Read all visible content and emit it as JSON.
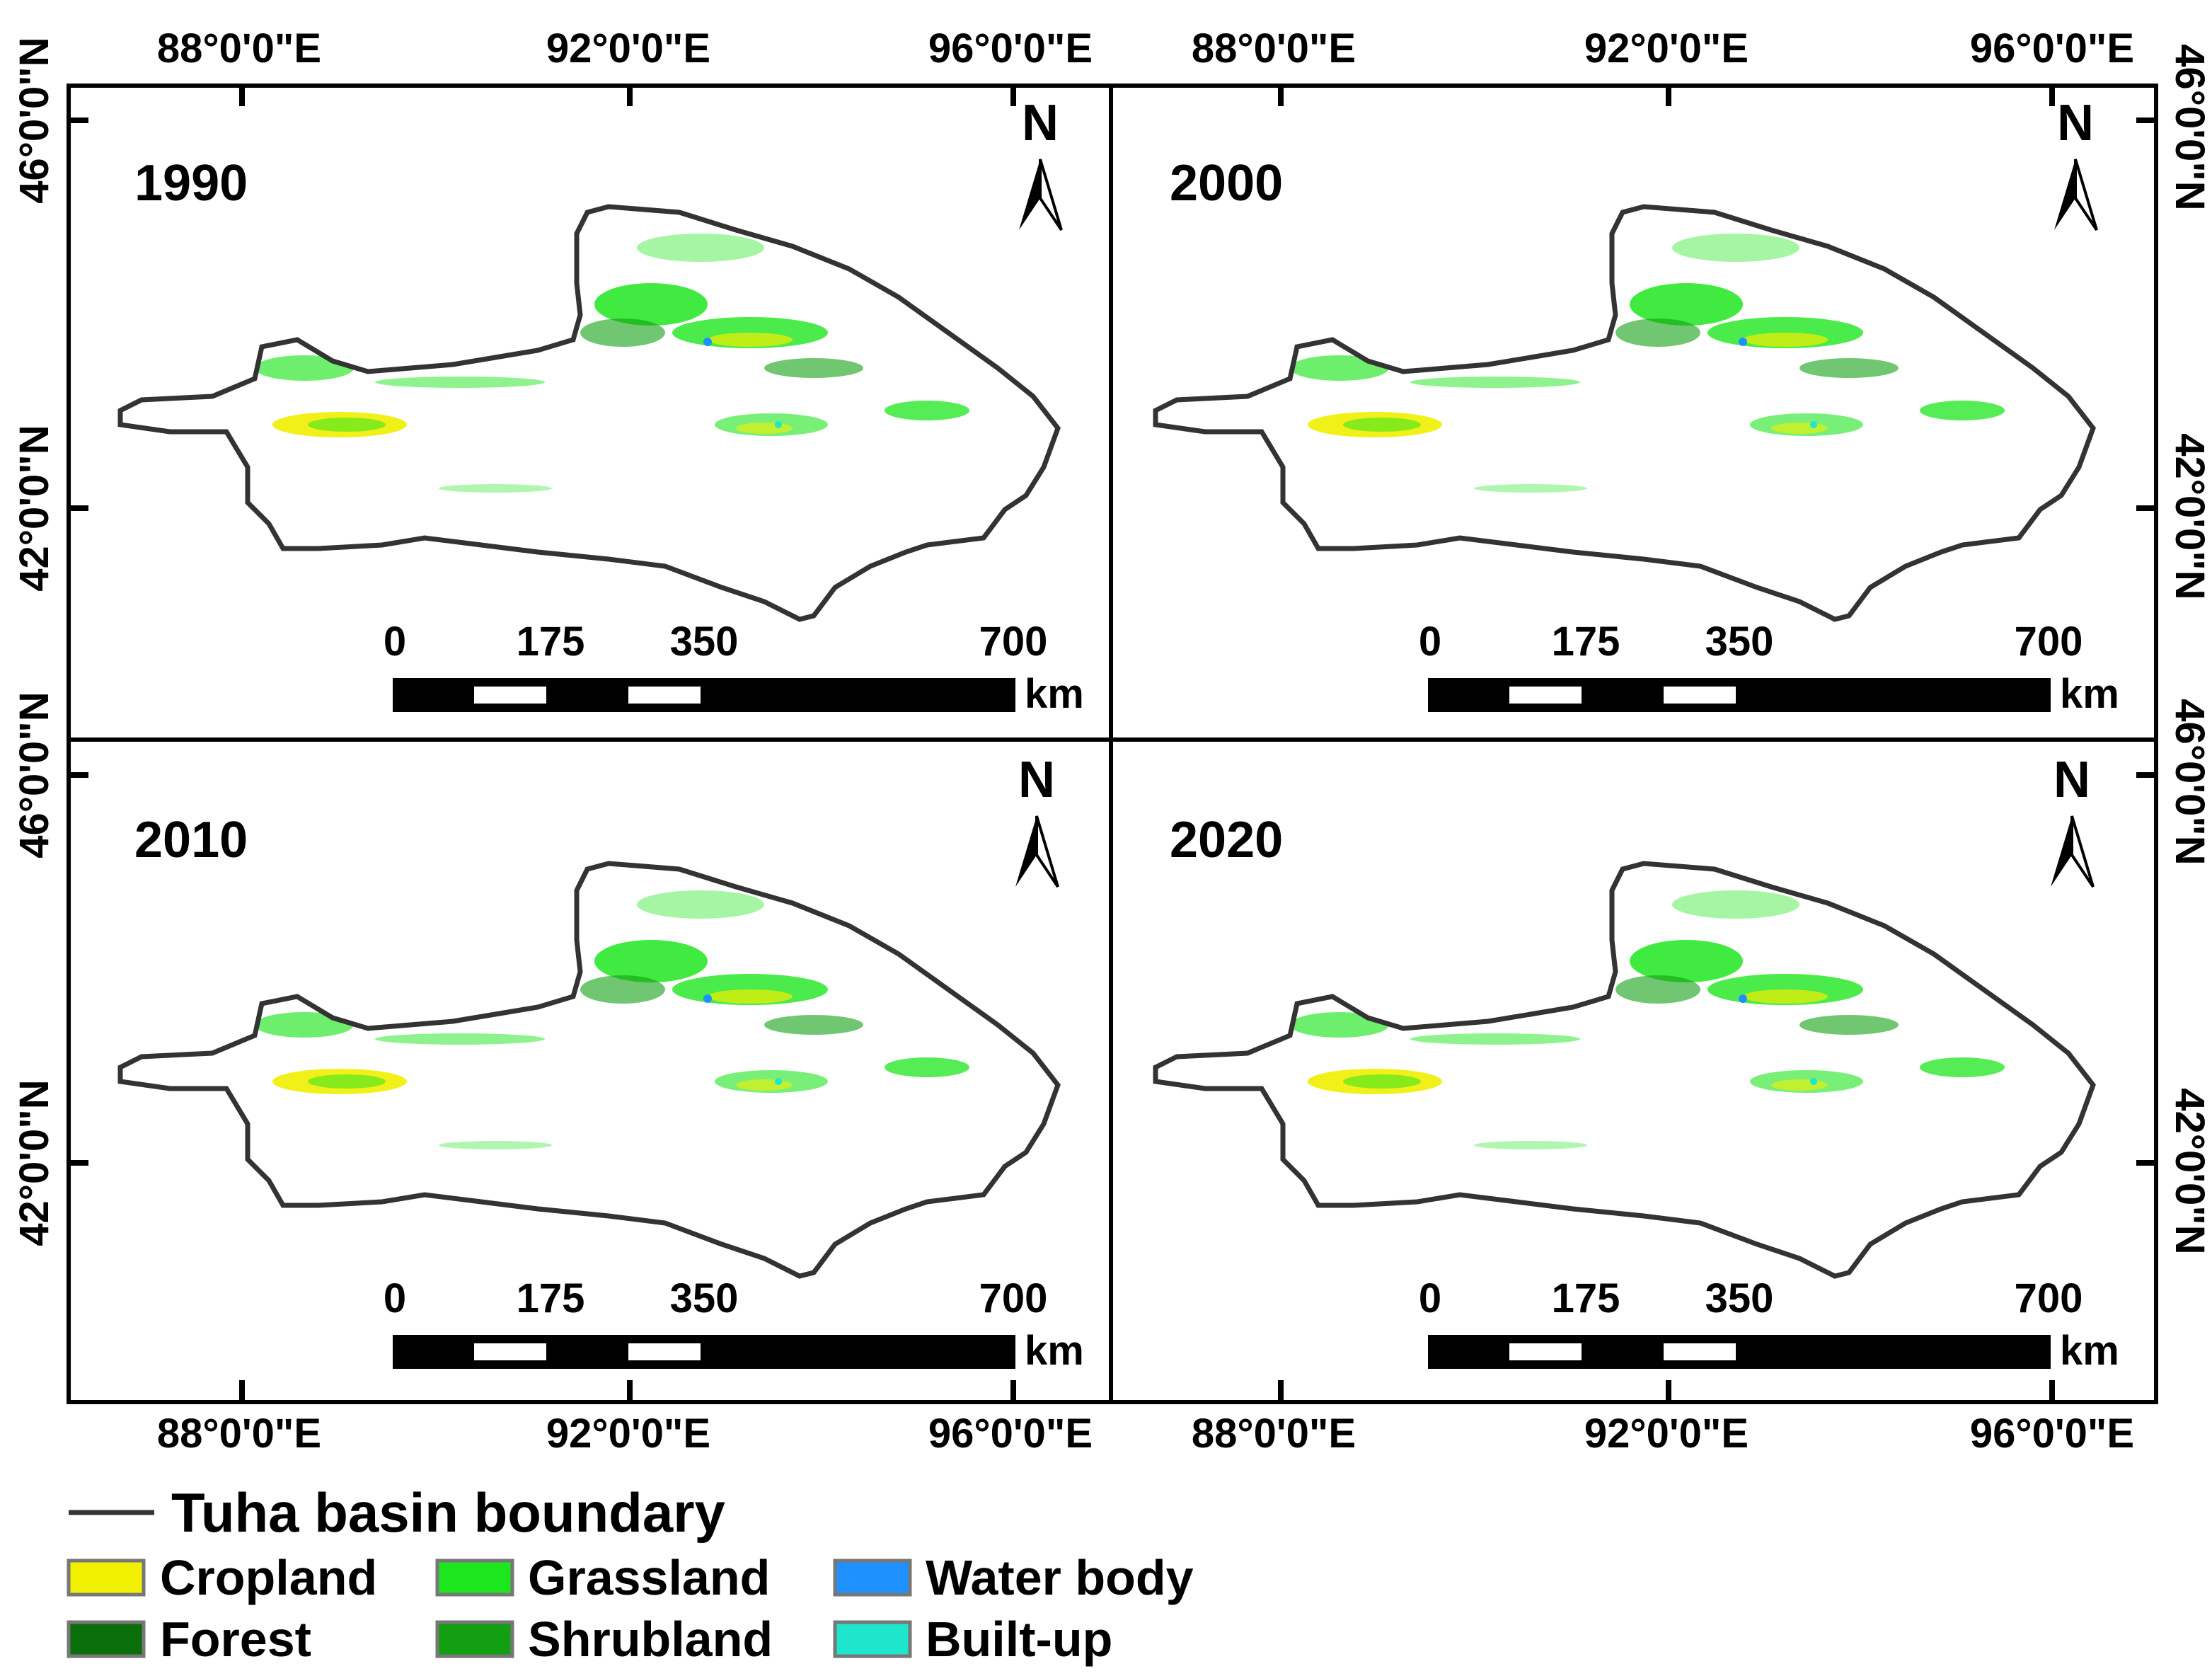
{
  "panels": [
    {
      "year": "1990"
    },
    {
      "year": "2000"
    },
    {
      "year": "2010"
    },
    {
      "year": "2020"
    }
  ],
  "axes": {
    "lon_labels": [
      "88°0'0\"E",
      "92°0'0\"E",
      "96°0'0\"E"
    ],
    "lat_labels": [
      "46°0'0\"N",
      "42°0'0\"N"
    ]
  },
  "north_arrow": {
    "label": "N",
    "icon": "north-arrow-icon"
  },
  "scale_bar": {
    "ticks": [
      "0",
      "175",
      "350",
      "700"
    ],
    "unit": "km"
  },
  "legend": {
    "boundary": {
      "label": "Tuha basin boundary",
      "color": "#333333"
    },
    "classes": [
      {
        "label": "Cropland",
        "color": "#f0f000"
      },
      {
        "label": "Forest",
        "color": "#0a6e0a"
      },
      {
        "label": "Grassland",
        "color": "#1ee61e"
      },
      {
        "label": "Shrubland",
        "color": "#12a012"
      },
      {
        "label": "Water body",
        "color": "#1e90ff"
      },
      {
        "label": "Built-up",
        "color": "#1ee6cd"
      }
    ]
  },
  "map_data": {
    "type": "land-use classification map",
    "region": "Tuha basin",
    "panels_years": [
      "1990",
      "2000",
      "2010",
      "2020"
    ]
  }
}
